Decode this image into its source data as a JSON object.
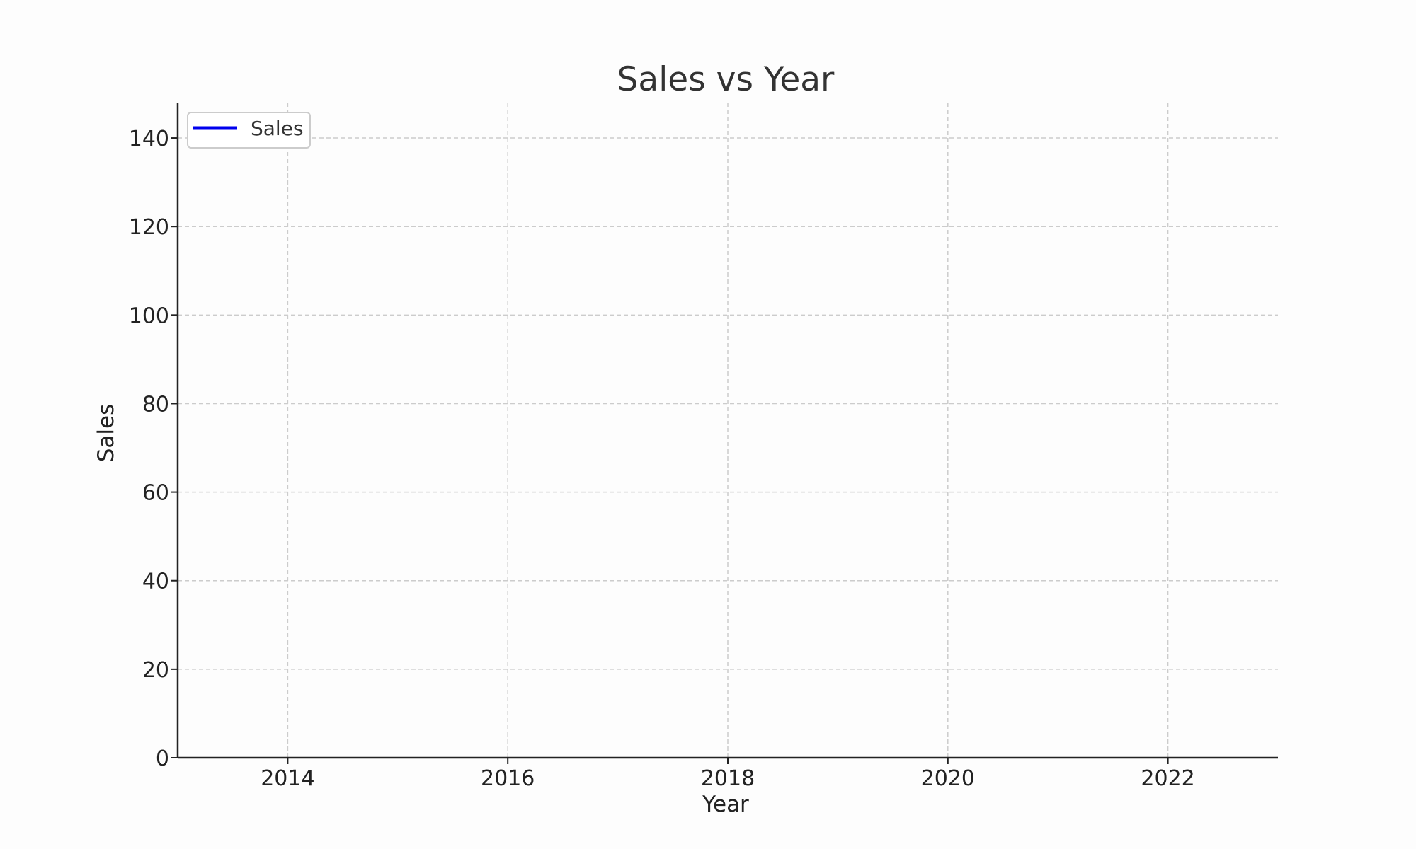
{
  "chart_data": {
    "type": "line",
    "title": "Sales vs Year",
    "xlabel": "Year",
    "ylabel": "Sales",
    "xlim": [
      2013,
      2023
    ],
    "ylim": [
      0,
      148
    ],
    "x_ticks": [
      2014,
      2016,
      2018,
      2020,
      2022
    ],
    "y_ticks": [
      0,
      20,
      40,
      60,
      80,
      100,
      120,
      140
    ],
    "grid": true,
    "legend_position": "top-left",
    "series": [
      {
        "name": "Sales",
        "color": "#0000ee",
        "x": [],
        "y": []
      }
    ]
  }
}
